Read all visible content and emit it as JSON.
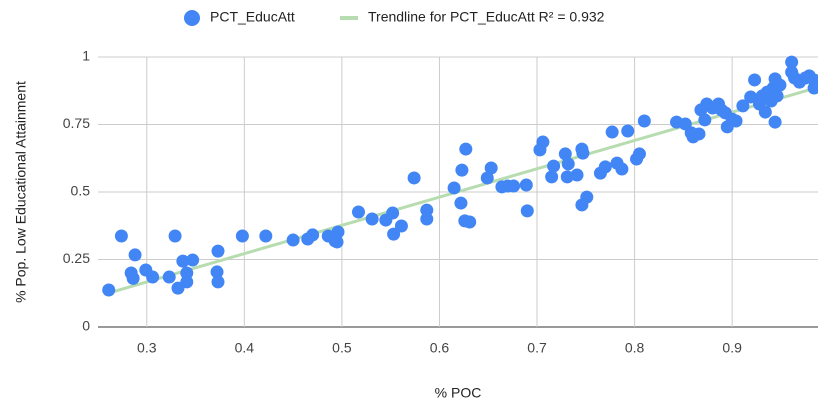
{
  "chart_data": {
    "type": "scatter",
    "x_label": "% POC",
    "y_label": "% Pop. Low Educational Attainment",
    "series": [
      {
        "name": "PCT_EducAtt",
        "color": "#4285f4",
        "x": [
          0.261,
          0.274,
          0.284,
          0.286,
          0.288,
          0.299,
          0.306,
          0.323,
          0.329,
          0.332,
          0.337,
          0.341,
          0.341,
          0.347,
          0.372,
          0.373,
          0.373,
          0.398,
          0.422,
          0.45,
          0.465,
          0.47,
          0.486,
          0.493,
          0.496,
          0.495,
          0.517,
          0.531,
          0.545,
          0.552,
          0.553,
          0.561,
          0.574,
          0.587,
          0.587,
          0.615,
          0.622,
          0.623,
          0.627,
          0.626,
          0.631,
          0.649,
          0.653,
          0.664,
          0.67,
          0.676,
          0.689,
          0.69,
          0.703,
          0.706,
          0.715,
          0.717,
          0.729,
          0.731,
          0.732,
          0.741,
          0.746,
          0.747,
          0.746,
          0.751,
          0.765,
          0.77,
          0.777,
          0.782,
          0.787,
          0.793,
          0.802,
          0.805,
          0.81,
          0.843,
          0.852,
          0.858,
          0.86,
          0.866,
          0.868,
          0.872,
          0.874,
          0.88,
          0.886,
          0.889,
          0.893,
          0.895,
          0.9,
          0.904,
          0.911,
          0.919,
          0.923,
          0.928,
          0.931,
          0.934,
          0.936,
          0.94,
          0.942,
          0.944,
          0.946,
          0.944,
          0.949,
          0.961,
          0.961,
          0.964,
          0.969,
          0.975,
          0.979,
          0.984,
          0.984
        ],
        "values": [
          0.137,
          0.337,
          0.2,
          0.18,
          0.267,
          0.211,
          0.185,
          0.185,
          0.337,
          0.144,
          0.244,
          0.167,
          0.2,
          0.248,
          0.204,
          0.167,
          0.281,
          0.337,
          0.337,
          0.322,
          0.326,
          0.341,
          0.337,
          0.319,
          0.352,
          0.315,
          0.426,
          0.4,
          0.396,
          0.422,
          0.344,
          0.374,
          0.552,
          0.433,
          0.4,
          0.515,
          0.459,
          0.581,
          0.659,
          0.393,
          0.389,
          0.552,
          0.589,
          0.519,
          0.522,
          0.522,
          0.526,
          0.43,
          0.656,
          0.685,
          0.556,
          0.596,
          0.641,
          0.556,
          0.604,
          0.563,
          0.659,
          0.644,
          0.452,
          0.481,
          0.57,
          0.593,
          0.722,
          0.607,
          0.585,
          0.726,
          0.622,
          0.641,
          0.763,
          0.759,
          0.752,
          0.719,
          0.704,
          0.715,
          0.804,
          0.767,
          0.826,
          0.811,
          0.826,
          0.804,
          0.793,
          0.741,
          0.77,
          0.763,
          0.819,
          0.852,
          0.915,
          0.826,
          0.856,
          0.796,
          0.87,
          0.837,
          0.885,
          0.919,
          0.856,
          0.759,
          0.896,
          0.981,
          0.944,
          0.922,
          0.907,
          0.922,
          0.93,
          0.915,
          0.885
        ]
      }
    ],
    "trendline": {
      "name": "Trendline for PCT_EducAtt R² = 0.932",
      "color": "#b7dcb0",
      "x": [
        0.26,
        0.99
      ],
      "values": [
        0.125,
        0.89
      ]
    },
    "xlim": [
      0.25,
      0.988
    ],
    "ylim": [
      0,
      1
    ],
    "xticks": [
      0.3,
      0.4,
      0.5,
      0.6,
      0.7,
      0.8,
      0.9
    ],
    "yticks": [
      0,
      0.25,
      0.5,
      0.75,
      1
    ],
    "grid": true,
    "legend": "top"
  }
}
